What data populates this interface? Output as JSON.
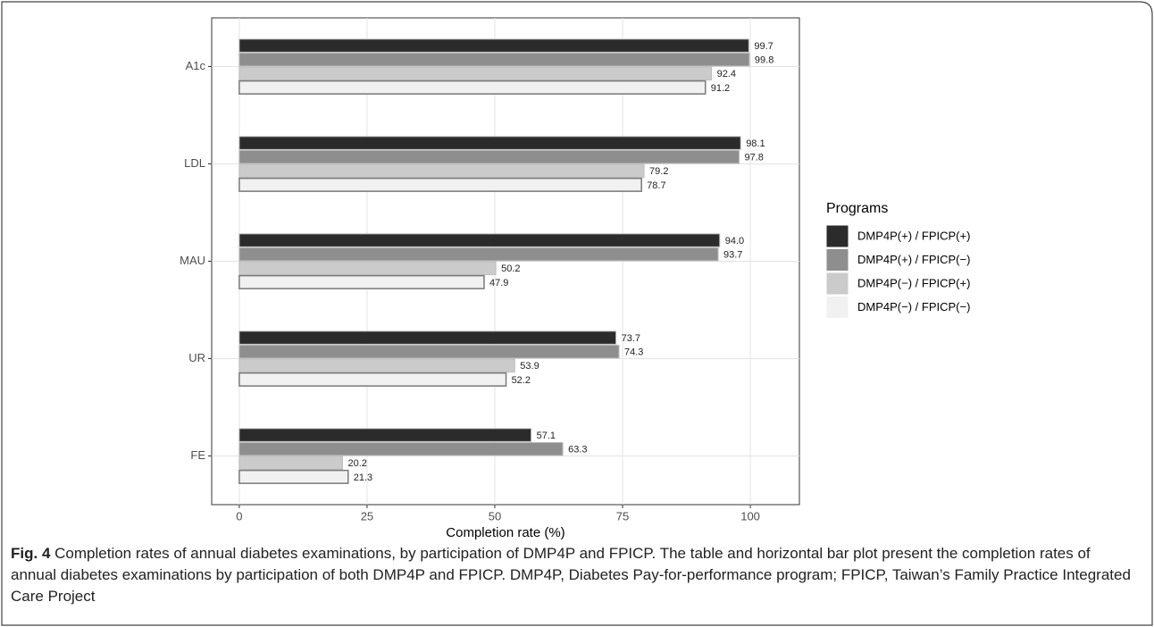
{
  "chart_data": {
    "type": "bar",
    "orientation": "horizontal",
    "x_label": "Completion rate (%)",
    "categories": [
      "A1c",
      "LDL",
      "MAU",
      "UR",
      "FE"
    ],
    "series": [
      {
        "name": "DMP4P(+) / FPICP(+)",
        "color": "#2b2b2b",
        "values": [
          99.7,
          98.1,
          94.0,
          73.7,
          57.1
        ],
        "value_labels": [
          "99.7",
          "98.1",
          "94.0",
          "73.7",
          "57.1"
        ]
      },
      {
        "name": "DMP4P(+) / FPICP(−)",
        "color": "#8e8e8e",
        "values": [
          99.8,
          97.8,
          93.7,
          74.3,
          63.3
        ],
        "value_labels": [
          "99.8",
          "97.8",
          "93.7",
          "74.3",
          "63.3"
        ]
      },
      {
        "name": "DMP4P(−) / FPICP(+)",
        "color": "#cbcbcb",
        "values": [
          92.4,
          79.2,
          50.2,
          53.9,
          20.2
        ],
        "value_labels": [
          "92.4",
          "79.2",
          "50.2",
          "53.9",
          "20.2"
        ]
      },
      {
        "name": "DMP4P(−) / FPICP(−)",
        "color": "#f1f1f1",
        "values": [
          91.2,
          78.7,
          47.9,
          52.2,
          21.3
        ],
        "value_labels": [
          "91.2",
          "78.7",
          "47.9",
          "52.2",
          "21.3"
        ]
      }
    ],
    "xlim": [
      -5.4,
      109.6
    ],
    "xticks": [
      0,
      25,
      50,
      75,
      100
    ],
    "grid": true,
    "legend_title": "Programs",
    "legend_position": "right"
  },
  "caption": {
    "label": "Fig. 4",
    "text": "Completion rates of annual diabetes examinations, by participation of DMP4P and FPICP. The table and horizontal bar plot present the completion rates of annual diabetes examinations by participation of both DMP4P and FPICP. DMP4P, Diabetes Pay-for-performance program; FPICP, Taiwan’s Family Practice Integrated Care Project"
  }
}
